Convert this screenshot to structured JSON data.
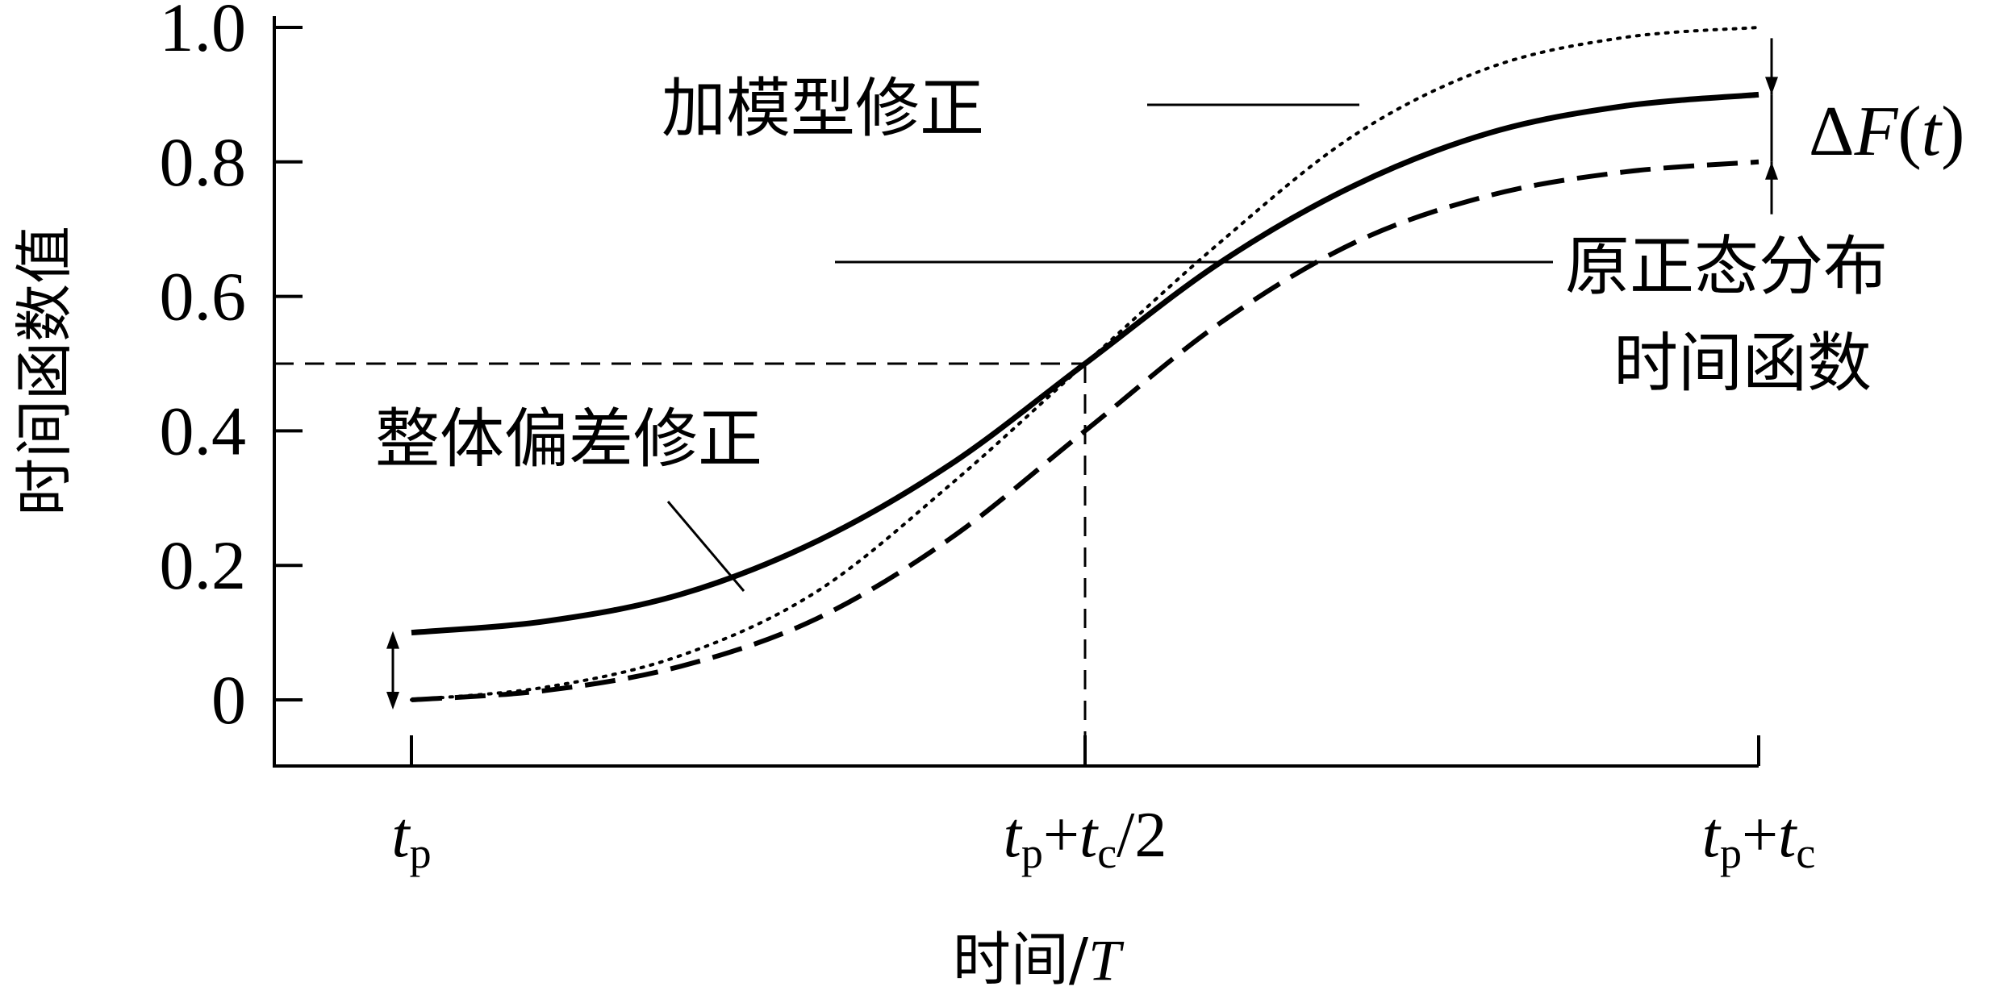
{
  "chart_data": {
    "type": "line",
    "xlabel": "时间/T",
    "ylabel": "时间函数值",
    "ylim": [
      -0.1,
      1.0
    ],
    "xlim": [
      -0.2,
      2.0
    ],
    "x_ticks": [
      {
        "x": 0,
        "base": "t",
        "sub": "p",
        "rest": ""
      },
      {
        "x": 1,
        "base": "t",
        "sub": "p",
        "rest": "+t",
        "sub2": "c",
        "tail": "/2"
      },
      {
        "x": 2,
        "base": "t",
        "sub": "p",
        "rest": "+t",
        "sub2": "c",
        "tail": ""
      }
    ],
    "y_ticks": [
      0,
      0.2,
      0.4,
      0.6,
      0.8,
      1.0
    ],
    "y_tick_labels": [
      "0",
      "0.2",
      "0.4",
      "0.6",
      "0.8",
      "1.0"
    ],
    "series": [
      {
        "key": "overall",
        "style": "solid",
        "x": [
          0,
          0.2,
          0.4,
          0.6,
          0.8,
          1.0,
          1.2,
          1.4,
          1.6,
          1.8,
          2.0
        ],
        "y": [
          0.1,
          0.117,
          0.157,
          0.235,
          0.35,
          0.5,
          0.65,
          0.765,
          0.843,
          0.883,
          0.9
        ]
      },
      {
        "key": "model",
        "style": "dotted",
        "x": [
          0,
          0.2,
          0.4,
          0.6,
          0.8,
          1.0,
          1.2,
          1.4,
          1.6,
          1.8,
          2.0
        ],
        "y": [
          0.0,
          0.019,
          0.066,
          0.16,
          0.32,
          0.5,
          0.68,
          0.84,
          0.94,
          0.985,
          1.0
        ]
      },
      {
        "key": "original",
        "style": "dashed",
        "x": [
          0,
          0.2,
          0.4,
          0.6,
          0.8,
          1.0,
          1.2,
          1.4,
          1.6,
          1.8,
          2.0
        ],
        "y": [
          0.0,
          0.014,
          0.05,
          0.12,
          0.24,
          0.4,
          0.56,
          0.68,
          0.75,
          0.785,
          0.8
        ]
      }
    ],
    "reference": {
      "x": 1,
      "y": 0.5
    },
    "annotations": {
      "model_label": "加模型修正",
      "overall_label": "整体偏差修正",
      "original_label_line1": "原正态分布",
      "original_label_line2": "时间函数",
      "delta_label_prefix": "Δ",
      "delta_label_var": "F",
      "delta_label_arg": "(t)"
    }
  }
}
